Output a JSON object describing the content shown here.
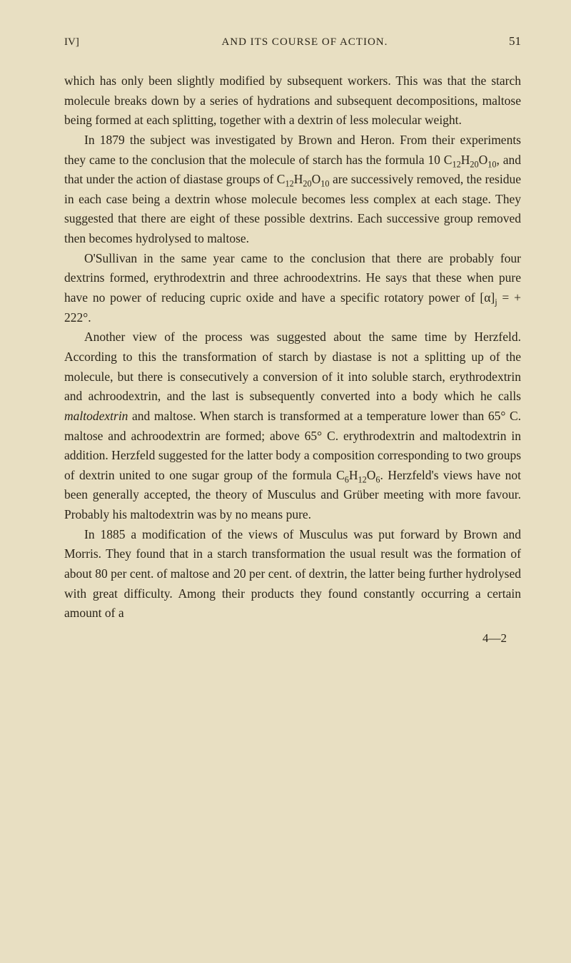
{
  "header": {
    "left": "IV]",
    "center": "AND ITS COURSE OF ACTION.",
    "pageNumber": "51"
  },
  "paragraphs": {
    "p1": "which has only been slightly modified by subsequent workers. This was that the starch molecule breaks down by a series of hydrations and subsequent decompositions, maltose being formed at each splitting, together with a dextrin of less molecular weight.",
    "p2_part1": "In 1879 the subject was investigated by Brown and Heron. From their experiments they came to the conclusion that the molecule of starch has the formula 10 C",
    "p2_sub1": "12",
    "p2_part2": "H",
    "p2_sub2": "20",
    "p2_part3": "O",
    "p2_sub3": "10",
    "p2_part4": ", and that under the action of diastase groups of C",
    "p2_sub4": "12",
    "p2_part5": "H",
    "p2_sub5": "20",
    "p2_part6": "O",
    "p2_sub6": "10",
    "p2_part7": " are successively removed, the residue in each case being a dextrin whose molecule becomes less complex at each stage. They suggested that there are eight of these possible dextrins. Each successive group removed then becomes hydrolysed to maltose.",
    "p3_part1": "O'Sullivan in the same year came to the conclusion that there are probably four dextrins formed, erythrodextrin and three achroodextrins. He says that these when pure have no power of reducing cupric oxide and have a specific rotatory power of [α]",
    "p3_sub1": "j",
    "p3_part2": " = + 222°.",
    "p4_part1": "Another view of the process was suggested about the same time by Herzfeld. According to this the transformation of starch by diastase is not a splitting up of the molecule, but there is consecutively a conversion of it into soluble starch, erythrodextrin and achroodextrin, and the last is subsequently converted into a body which he calls ",
    "p4_italic": "maltodextrin",
    "p4_part2": " and maltose. When starch is transformed at a temperature lower than 65° C. maltose and achroodextrin are formed; above 65° C. erythrodextrin and maltodextrin in addition. Herzfeld suggested for the latter body a composition corresponding to two groups of dextrin united to one sugar group of the formula C",
    "p4_sub1": "6",
    "p4_part3": "H",
    "p4_sub2": "12",
    "p4_part4": "O",
    "p4_sub3": "6",
    "p4_part5": ". Herzfeld's views have not been generally accepted, the theory of Musculus and Grüber meeting with more favour. Probably his maltodextrin was by no means pure.",
    "p5": "In 1885 a modification of the views of Musculus was put forward by Brown and Morris. They found that in a starch transformation the usual result was the formation of about 80 per cent. of maltose and 20 per cent. of dextrin, the latter being further hydrolysed with great difficulty. Among their products they found constantly occurring a certain amount of a"
  },
  "footer": {
    "mark": "4—2"
  },
  "colors": {
    "background": "#e8dfc2",
    "text": "#2a2418"
  },
  "typography": {
    "body_fontsize": 17.5,
    "header_fontsize": 15,
    "line_height": 1.58,
    "font_family": "Century Schoolbook, Georgia, serif"
  }
}
